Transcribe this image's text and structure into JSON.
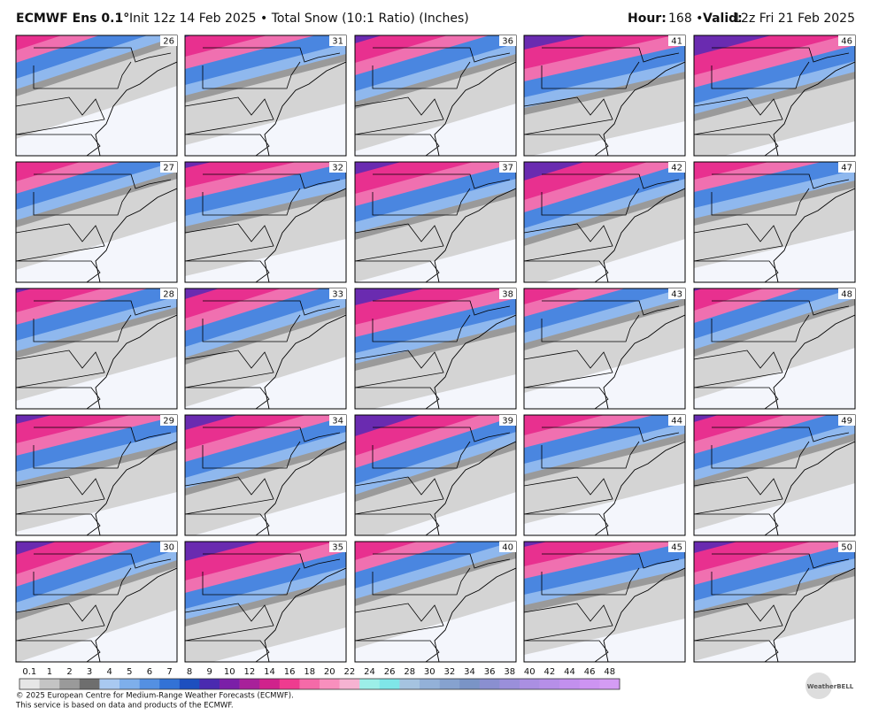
{
  "header": {
    "model": "ECMWF Ens 0.1°",
    "init": "Init 12z 14 Feb 2025 • Total Snow (10:1 Ratio) (Inches)",
    "hour_label": "Hour:",
    "hour": "168 •",
    "valid_label": "Valid:",
    "valid": "12z Fri 21 Feb 2025"
  },
  "panels": [
    26,
    31,
    36,
    41,
    46,
    27,
    32,
    37,
    42,
    47,
    28,
    33,
    38,
    43,
    48,
    29,
    34,
    39,
    44,
    49,
    30,
    35,
    40,
    45,
    50
  ],
  "colorbar": {
    "levels": [
      0.1,
      1,
      2,
      3,
      4,
      5,
      6,
      7,
      8,
      9,
      10,
      12,
      14,
      16,
      18,
      20,
      22,
      24,
      26,
      28,
      30,
      32,
      34,
      36,
      38,
      40,
      42,
      44,
      46,
      48
    ],
    "colors": [
      "#e6e6e6",
      "#c4c4c4",
      "#9a9a9a",
      "#6e6e6e",
      "#a9c9f1",
      "#7eafeb",
      "#5490e2",
      "#3272d6",
      "#1d4fbf",
      "#4a2ab0",
      "#7b1fa8",
      "#a8219a",
      "#d0228c",
      "#ef3b8f",
      "#f56aa8",
      "#f88fbd",
      "#f6b3d2",
      "#9cefe8",
      "#7fe6e8",
      "#a5c3e0",
      "#93b1d8",
      "#86a2cf",
      "#7a94c6",
      "#8a8fd0",
      "#9a8fda",
      "#aa8fe2",
      "#b68fe8",
      "#c290ee",
      "#cd94f2",
      "#d49cf4"
    ]
  },
  "footer": {
    "line1": "© 2025 European Centre for Medium-Range Weather Forecasts (ECMWF).",
    "line2": "This service is based on data and products of the ECMWF.",
    "logo": "WeatherBELL"
  }
}
